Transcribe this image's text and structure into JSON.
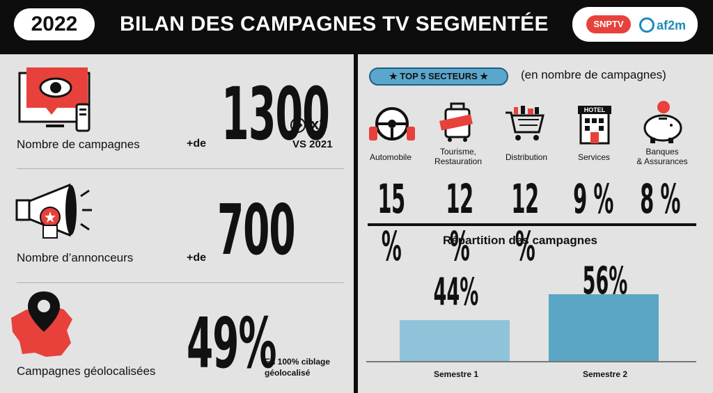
{
  "header": {
    "year": "2022",
    "title": "BILAN DES CAMPAGNES TV SEGMENTÉE",
    "logo_snp": "SNPTV",
    "logo_af2m": "af2m"
  },
  "left": {
    "campagnes": {
      "label": "Nombre de campagnes",
      "prefix": "+de",
      "value": "1300",
      "multiplier": "x3",
      "comparison": "VS 2021"
    },
    "annonceurs": {
      "label": "Nombre d’annonceurs",
      "prefix": "+de",
      "value": "700"
    },
    "geo": {
      "label": "Campagnes géolocalisées",
      "value": "49%",
      "note_line1": "En 100% ciblage",
      "note_line2": "géolocalisé"
    }
  },
  "right": {
    "top_label": "★ TOP 5 SECTEURS ★",
    "subtitle": "(en nombre de campagnes)",
    "sectors": [
      {
        "name": "Automobile",
        "pct": "15 %",
        "icon": "steering-wheel-icon"
      },
      {
        "name": "Tourisme,\nRestauration",
        "pct": "12 %",
        "icon": "suitcase-icon"
      },
      {
        "name": "Distribution",
        "pct": "12 %",
        "icon": "shopping-cart-icon"
      },
      {
        "name": "Services",
        "pct": "9 %",
        "icon": "hotel-icon"
      },
      {
        "name": "Banques\n& Assurances",
        "pct": "8 %",
        "icon": "piggy-bank-icon"
      }
    ],
    "repartition_title": "Répartition des campagnes"
  },
  "chart_data": {
    "type": "bar",
    "title": "Répartition des campagnes",
    "categories": [
      "Semestre 1",
      "Semestre 2"
    ],
    "values": [
      44,
      56
    ],
    "value_labels": [
      "44%",
      "56%"
    ],
    "colors": [
      "#8ec3da",
      "#5ba6c4"
    ]
  },
  "colors": {
    "accent_red": "#e8413b",
    "accent_blue": "#5ba6cc",
    "background": "#e3e3e3",
    "header": "#0d0d0d"
  }
}
